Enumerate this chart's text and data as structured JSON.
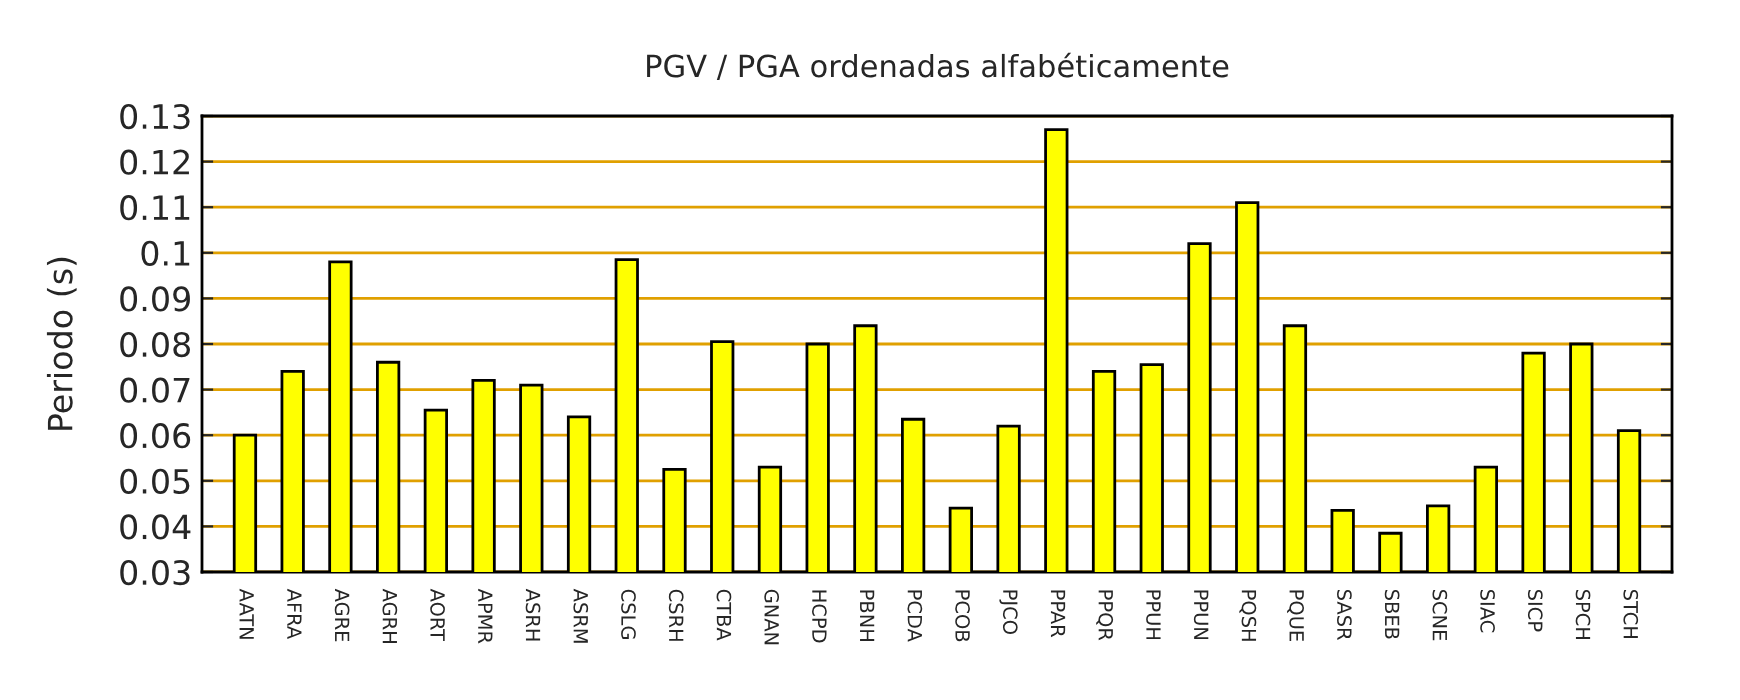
{
  "chart_data": {
    "type": "bar",
    "title": "PGV / PGA ordenadas alfabéticamente",
    "ylabel": "Periodo (s)",
    "categories": [
      "AATN",
      "AFRA",
      "AGRE",
      "AGRH",
      "AORT",
      "APMR",
      "ASRH",
      "ASRM",
      "CSLG",
      "CSRH",
      "CTBA",
      "GNAN",
      "HCPD",
      "PBNH",
      "PCDA",
      "PCOB",
      "PJCO",
      "PPAR",
      "PPQR",
      "PPUH",
      "PPUN",
      "PQSH",
      "PQUE",
      "SASR",
      "SBEB",
      "SCNE",
      "SIAC",
      "SICP",
      "SPCH",
      "STCH"
    ],
    "values": [
      0.06,
      0.074,
      0.098,
      0.076,
      0.0655,
      0.072,
      0.071,
      0.064,
      0.0985,
      0.0525,
      0.0805,
      0.053,
      0.08,
      0.084,
      0.0635,
      0.044,
      0.062,
      0.127,
      0.074,
      0.0755,
      0.102,
      0.111,
      0.084,
      0.0435,
      0.0385,
      0.0445,
      0.053,
      0.078,
      0.08,
      0.061
    ],
    "color": "#ffff00",
    "ylim": [
      0.03,
      0.13
    ],
    "yticks": [
      0.03,
      0.04,
      0.05,
      0.06,
      0.07,
      0.08,
      0.09,
      0.1,
      0.11,
      0.12,
      0.13
    ],
    "grid": "y"
  }
}
